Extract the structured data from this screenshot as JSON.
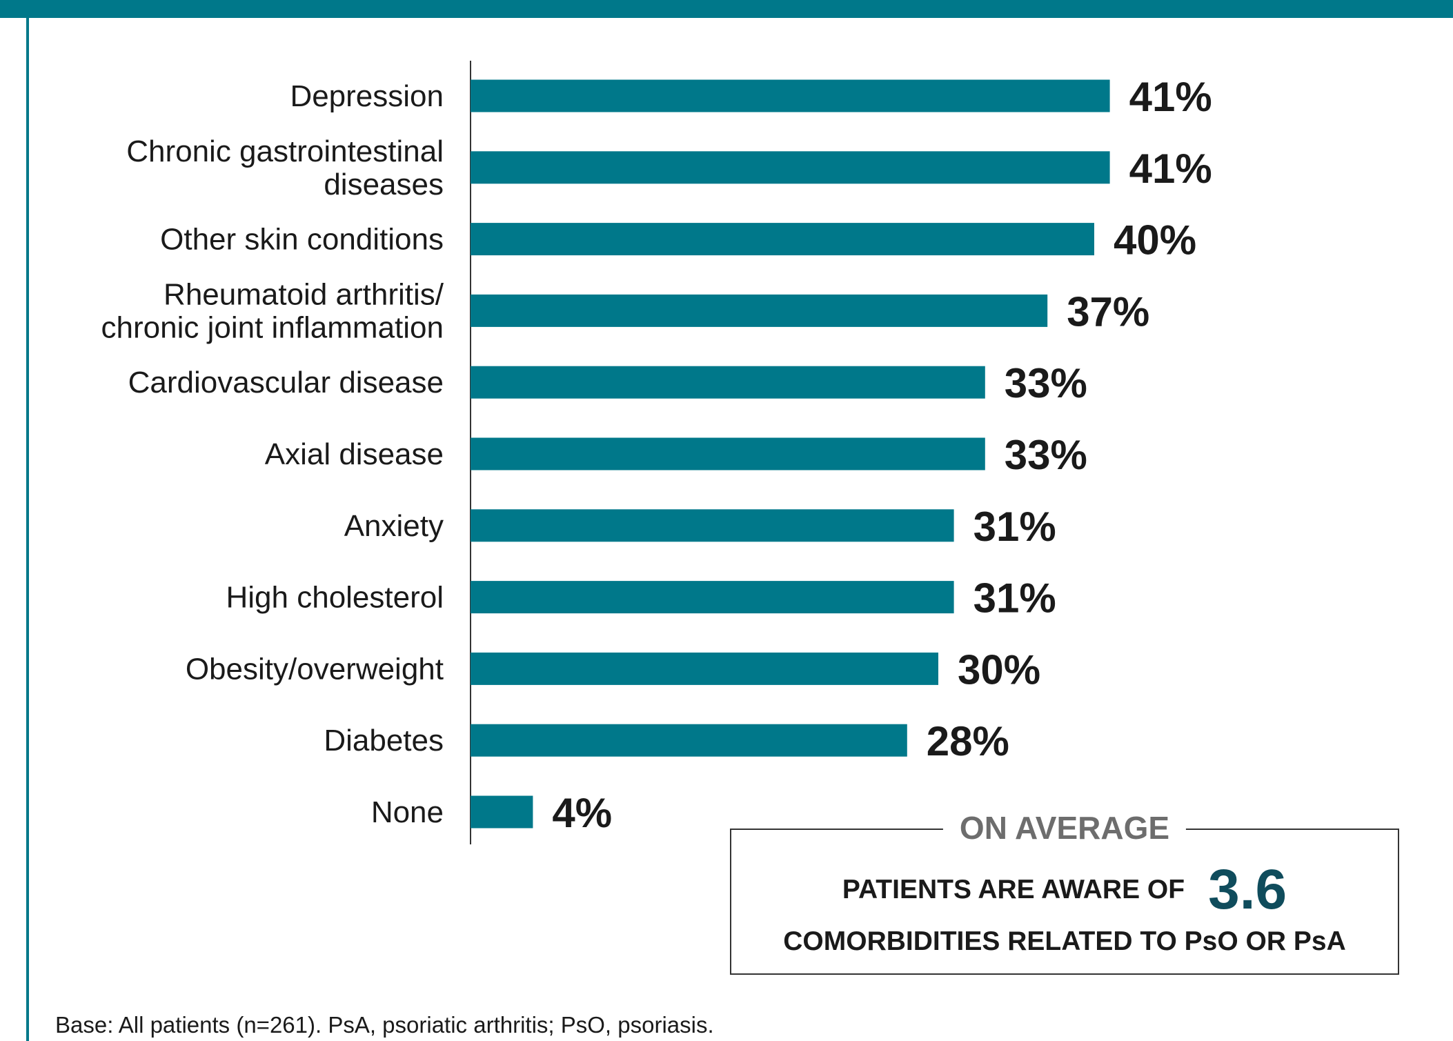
{
  "colors": {
    "accent": "#00788a",
    "text": "#1a1a1a",
    "heading_gray": "#6d6d6d",
    "highlight": "#0f4c5c",
    "axis": "#333333"
  },
  "chart_data": {
    "type": "bar",
    "orientation": "horizontal",
    "title": "",
    "xlabel": "",
    "ylabel": "",
    "xlim": [
      0,
      100
    ],
    "grid": false,
    "categories": [
      [
        "Depression"
      ],
      [
        "Chronic gastrointestinal",
        "diseases"
      ],
      [
        "Other skin conditions"
      ],
      [
        "Rheumatoid arthritis/",
        "chronic joint inflammation"
      ],
      [
        "Cardiovascular disease"
      ],
      [
        "Axial disease"
      ],
      [
        "Anxiety"
      ],
      [
        "High cholesterol"
      ],
      [
        "Obesity/overweight"
      ],
      [
        "Diabetes"
      ],
      [
        "None"
      ]
    ],
    "values": [
      41,
      41,
      40,
      37,
      33,
      33,
      31,
      31,
      30,
      28,
      4
    ],
    "value_labels": [
      "41%",
      "41%",
      "40%",
      "37%",
      "33%",
      "33%",
      "31%",
      "31%",
      "30%",
      "28%",
      "4%"
    ]
  },
  "summary": {
    "heading": "ON AVERAGE",
    "line1": "PATIENTS ARE AWARE OF",
    "value": "3.6",
    "line2": "COMORBIDITIES RELATED TO PsO OR PsA"
  },
  "footnote": "Base: All patients (n=261). PsA, psoriatic arthritis; PsO, psoriasis."
}
